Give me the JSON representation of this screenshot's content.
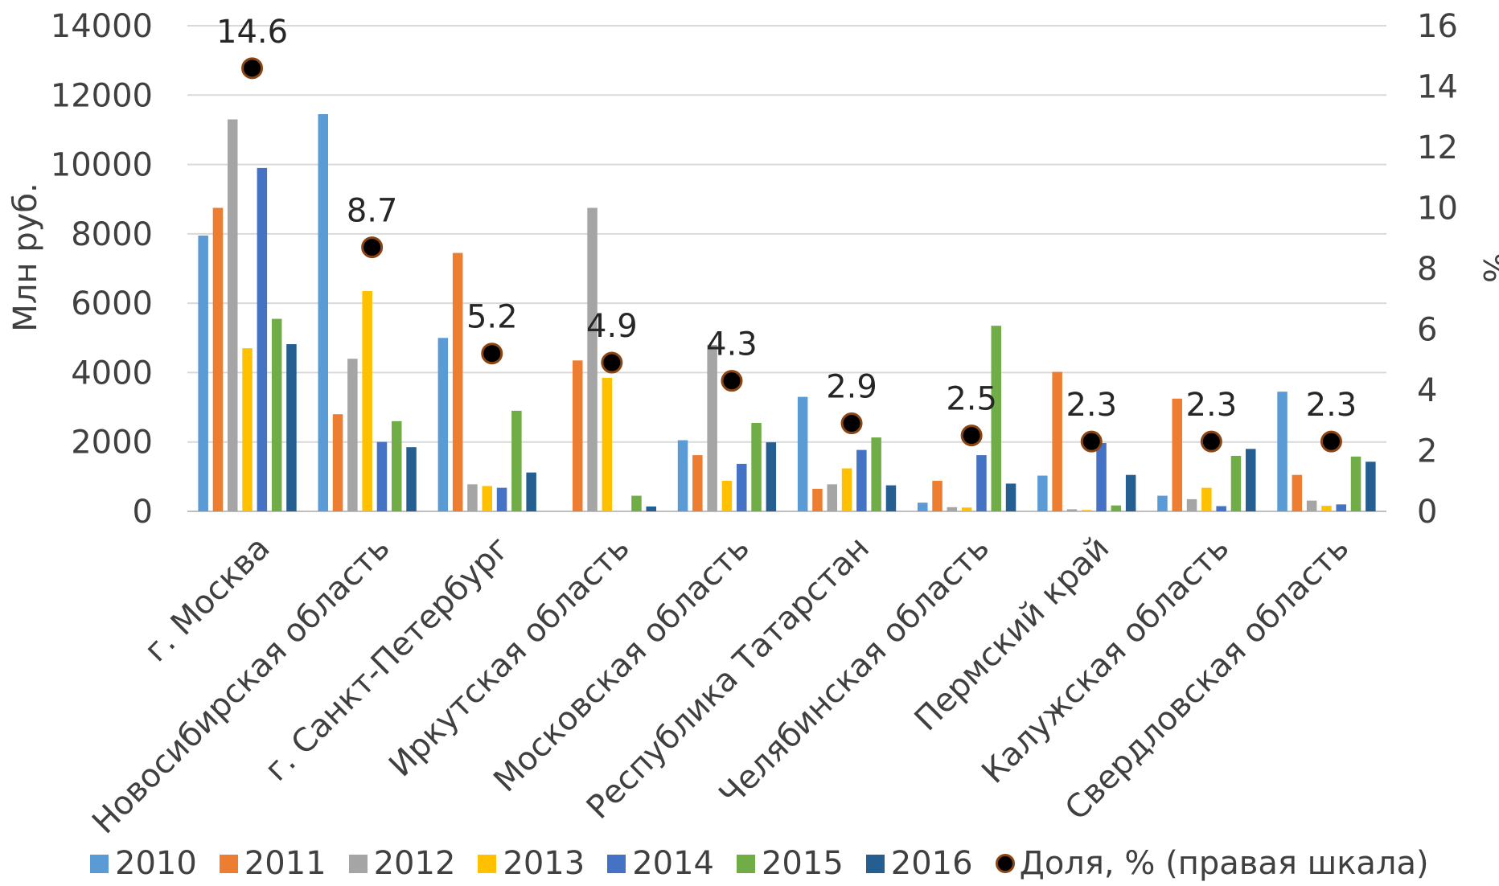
{
  "chart_data": {
    "type": "bar",
    "title": "",
    "ylabel": "Млн руб.",
    "y2label": "%",
    "ylim": [
      0,
      14000
    ],
    "y2lim": [
      0,
      16
    ],
    "yticks": [
      "0",
      "2000",
      "4000",
      "6000",
      "8000",
      "10000",
      "12000",
      "14000"
    ],
    "y2ticks": [
      "0",
      "2",
      "4",
      "6",
      "8",
      "10",
      "12",
      "14",
      "16"
    ],
    "grid": true,
    "legend_position": "bottom",
    "categories": [
      "г. Москва",
      "Новосибирская область",
      "г. Санкт-Петербург",
      "Иркутская область",
      "Московская область",
      "Республика Татарстан",
      "Челябинская область",
      "Пермский край",
      "Калужская область",
      "Свердловская область"
    ],
    "series": [
      {
        "name": "2010",
        "color": "#5B9BD5",
        "values": [
          7950,
          11450,
          5000,
          0,
          2050,
          3300,
          250,
          1030,
          450,
          3450
        ]
      },
      {
        "name": "2011",
        "color": "#ED7D31",
        "values": [
          8750,
          2800,
          7450,
          4350,
          1620,
          650,
          880,
          4020,
          3250,
          1050
        ]
      },
      {
        "name": "2012",
        "color": "#A5A5A5",
        "values": [
          11300,
          4400,
          780,
          8750,
          4800,
          780,
          120,
          60,
          350,
          310
        ]
      },
      {
        "name": "2013",
        "color": "#FFC000",
        "values": [
          4700,
          6350,
          730,
          3850,
          880,
          1240,
          110,
          40,
          680,
          160
        ]
      },
      {
        "name": "2014",
        "color": "#4472C4",
        "values": [
          9900,
          2000,
          680,
          0,
          1370,
          1770,
          1620,
          1970,
          150,
          200
        ]
      },
      {
        "name": "2015",
        "color": "#70AD47",
        "values": [
          5550,
          2600,
          2900,
          450,
          2550,
          2130,
          5350,
          170,
          1600,
          1580
        ]
      },
      {
        "name": "2016",
        "color": "#255E91",
        "values": [
          4820,
          1850,
          1120,
          140,
          1990,
          750,
          800,
          1050,
          1800,
          1430
        ]
      }
    ],
    "share_series": {
      "name": "Доля, % (правая шкала)",
      "axis": "right",
      "values": [
        14.6,
        8.7,
        5.2,
        4.9,
        4.3,
        2.9,
        2.5,
        2.3,
        2.3,
        2.3
      ],
      "labels": [
        "14.6",
        "8.7",
        "5.2",
        "4.9",
        "4.3",
        "2.9",
        "2.5",
        "2.3",
        "2.3",
        "2.3"
      ]
    }
  },
  "legend": {
    "items": [
      {
        "label": "2010",
        "color": "#5B9BD5"
      },
      {
        "label": "2011",
        "color": "#ED7D31"
      },
      {
        "label": "2012",
        "color": "#A5A5A5"
      },
      {
        "label": "2013",
        "color": "#FFC000"
      },
      {
        "label": "2014",
        "color": "#4472C4"
      },
      {
        "label": "2015",
        "color": "#70AD47"
      },
      {
        "label": "2016",
        "color": "#255E91"
      }
    ],
    "marker_label": "Доля, % (правая шкала)"
  }
}
